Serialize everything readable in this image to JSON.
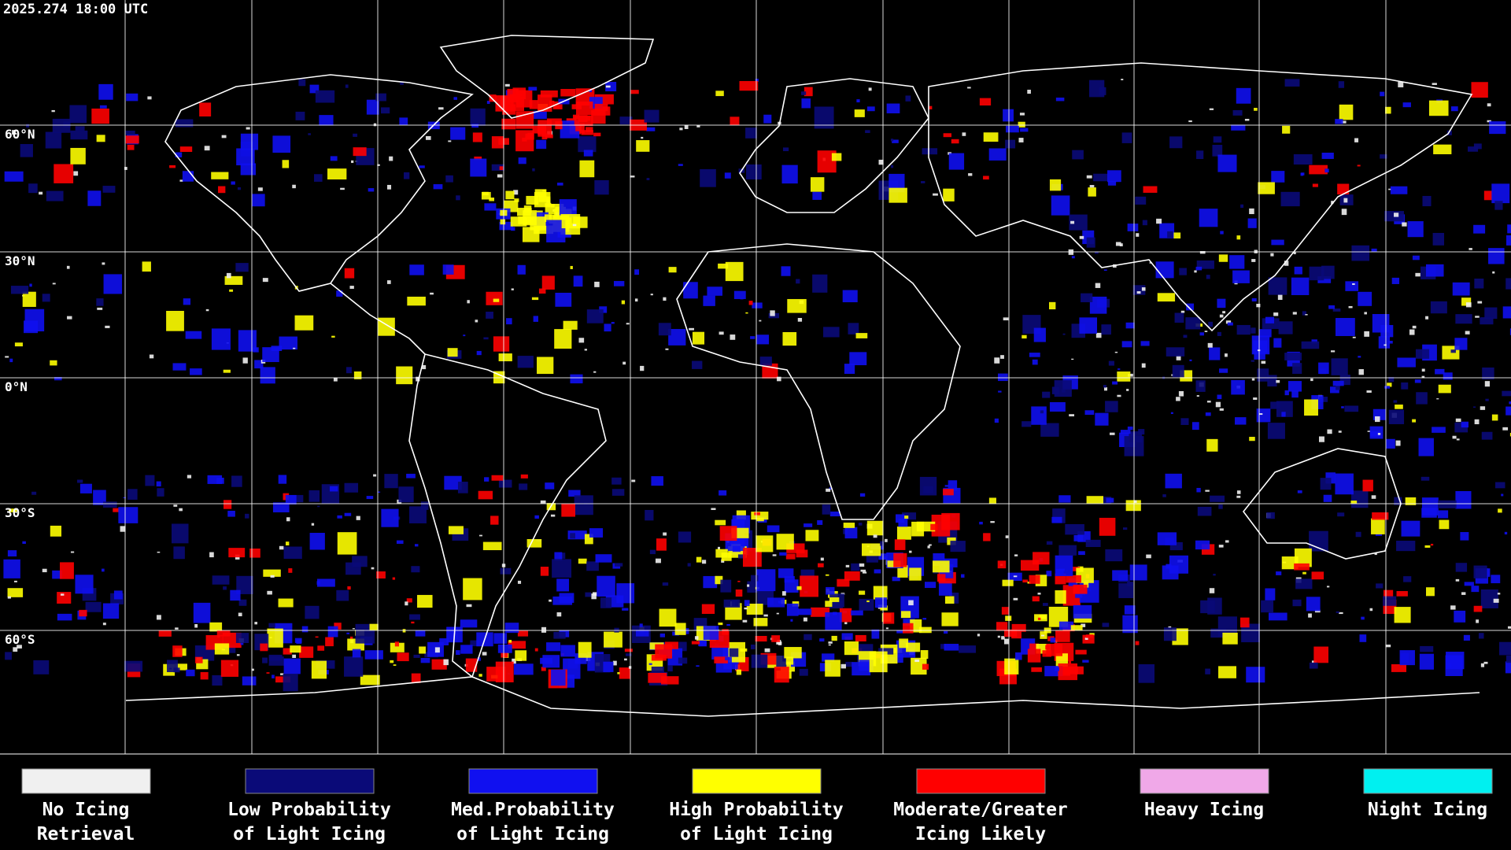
{
  "header": {
    "timestamp": "2025.274 18:00 UTC"
  },
  "map": {
    "latitude_labels": [
      "60°N",
      "30°N",
      "0°N",
      "30°S",
      "60°S"
    ]
  },
  "legend": [
    {
      "label": [
        "No Icing",
        "Retrieval"
      ],
      "color": "#f0f0f0"
    },
    {
      "label": [
        "Low Probability",
        "of Light Icing"
      ],
      "color": "#0a0a78"
    },
    {
      "label": [
        "Med.Probability",
        "of Light Icing"
      ],
      "color": "#1010f0"
    },
    {
      "label": [
        "High Probability",
        "of Light Icing"
      ],
      "color": "#ffff00"
    },
    {
      "label": [
        "Moderate/Greater",
        "Icing Likely"
      ],
      "color": "#ff0000"
    },
    {
      "label": [
        "Heavy Icing"
      ],
      "color": "#f0a8e8"
    },
    {
      "label": [
        "Night Icing"
      ],
      "color": "#00f0f0"
    }
  ]
}
